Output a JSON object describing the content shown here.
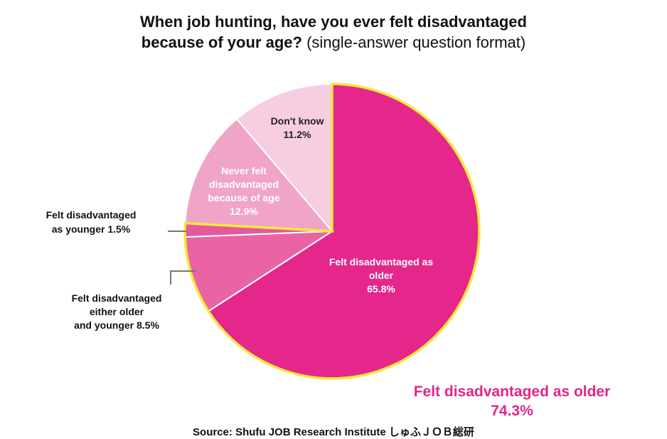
{
  "header": {
    "title_line1": "When job hunting, have you ever felt disadvantaged",
    "title_line2_bold": "because of your age?",
    "title_line2_paren": "(single-answer question format)"
  },
  "chart_data": {
    "type": "pie",
    "title": "When job hunting, have you ever felt disadvantaged because of your age? (single-answer question format)",
    "slices": [
      {
        "label": "Felt disadvantaged as older",
        "value": 65.8,
        "color": "#e5268a"
      },
      {
        "label": "Felt disadvantaged either older and younger",
        "value": 8.5,
        "color": "#ea64a4"
      },
      {
        "label": "Felt disadvantaged as younger",
        "value": 1.5,
        "color": "#e25a9c"
      },
      {
        "label": "Never felt disadvantaged because of age",
        "value": 12.9,
        "color": "#f0a4c8"
      },
      {
        "label": "Don't know",
        "value": 11.2,
        "color": "#f6cde1"
      }
    ],
    "labels": {
      "older": [
        "Felt disadvantaged as",
        "older",
        "65.8%"
      ],
      "never": [
        "Never felt",
        "disadvantaged",
        "because of age",
        "12.9%"
      ],
      "dontknow": [
        "Don't know",
        "11.2%"
      ],
      "younger": [
        "Felt disadvantaged",
        "as younger 1.5%"
      ],
      "both": [
        "Felt disadvantaged",
        "either older",
        "and younger 8.5%"
      ]
    },
    "highlight_color": "#f5e93a"
  },
  "callout": {
    "line1": "Felt disadvantaged as older",
    "line2": "74.3%"
  },
  "footer": {
    "source": "Source: Shufu JOB Research Institute しゅふＪＯＢ総研"
  }
}
